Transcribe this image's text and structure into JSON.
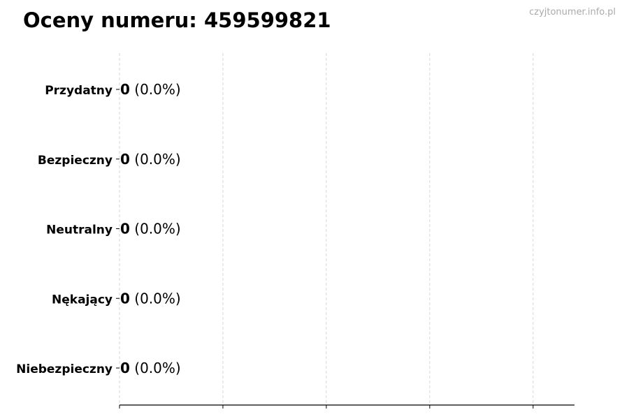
{
  "chart_data": {
    "type": "bar",
    "orientation": "horizontal",
    "title": "Oceny numeru: 459599821",
    "categories": [
      "Przydatny",
      "Bezpieczny",
      "Neutralny",
      "Nękający",
      "Niebezpieczny"
    ],
    "values": [
      0,
      0,
      0,
      0,
      0
    ],
    "data_labels": [
      {
        "count": "0",
        "percent": "(0.0%)"
      },
      {
        "count": "0",
        "percent": "(0.0%)"
      },
      {
        "count": "0",
        "percent": "(0.0%)"
      },
      {
        "count": "0",
        "percent": "(0.0%)"
      },
      {
        "count": "0",
        "percent": "(0.0%)"
      }
    ],
    "xlabel": "",
    "ylabel": "",
    "xlim": [
      0,
      1.1
    ],
    "x_ticks": [
      0,
      0.25,
      0.5,
      0.75,
      1.0
    ],
    "x_tick_labels_shown": false,
    "grid": "vertical dashed",
    "bar_edge_color": "#000000",
    "grid_color": "#cccccc"
  },
  "watermark": "czyjtonumer.info.pl"
}
